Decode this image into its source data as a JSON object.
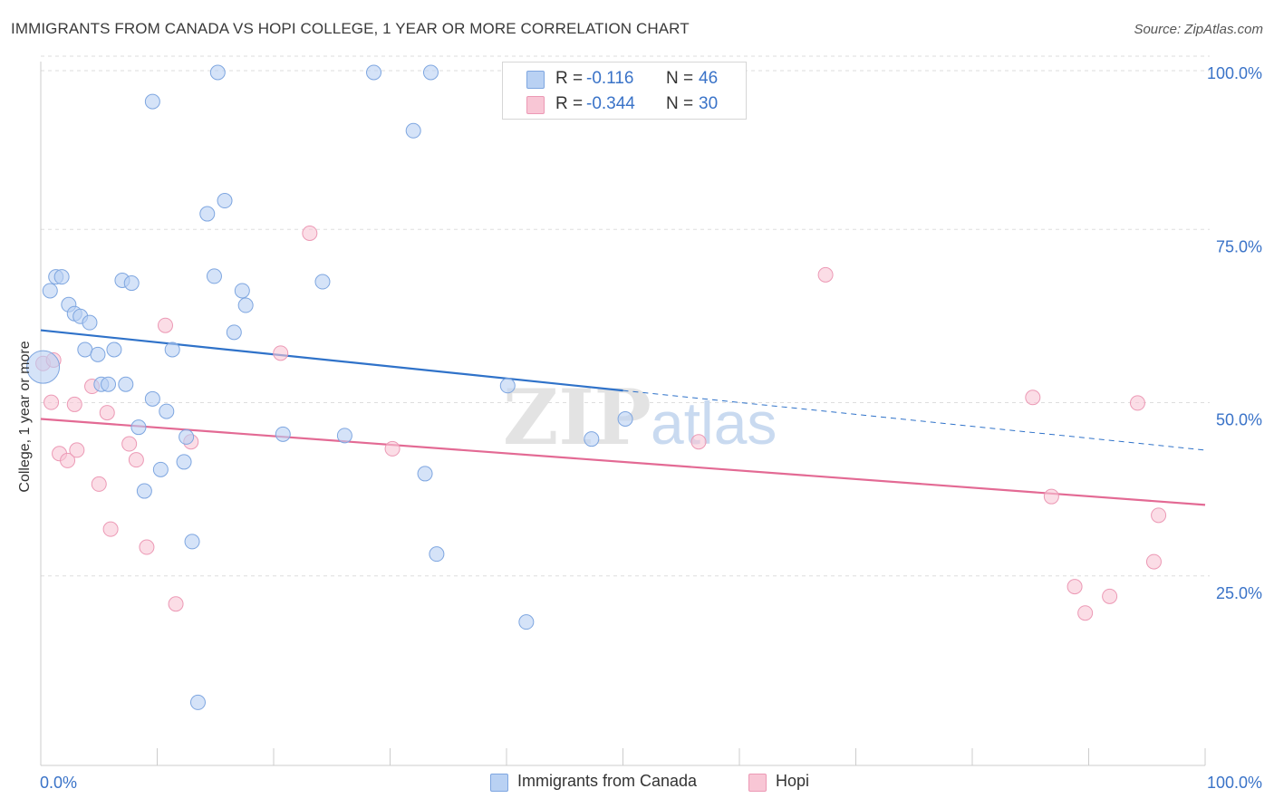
{
  "title": "IMMIGRANTS FROM CANADA VS HOPI COLLEGE, 1 YEAR OR MORE CORRELATION CHART",
  "source": "Source: ZipAtlas.com",
  "watermark": {
    "zip": "ZIP",
    "atlas": "atlas"
  },
  "legend": {
    "rows": [
      {
        "r_label": "R =",
        "r_value": "-0.116",
        "n_label": "N =",
        "n_value": "46"
      },
      {
        "r_label": "R =",
        "r_value": "-0.344",
        "n_label": "N =",
        "n_value": "30"
      }
    ]
  },
  "bottom_legend": [
    "Immigrants from Canada",
    "Hopi"
  ],
  "colors": {
    "canada_fill": "#b9d1f3",
    "canada_stroke": "#7ea6e0",
    "canada_line": "#2f72c9",
    "hopi_fill": "#f8c6d5",
    "hopi_stroke": "#ec99b5",
    "hopi_line": "#e36a94",
    "axis_label": "#3a73c8",
    "grid": "#dddddd"
  },
  "chart_data": {
    "type": "scatter",
    "title": "IMMIGRANTS FROM CANADA VS HOPI COLLEGE, 1 YEAR OR MORE CORRELATION CHART",
    "xlabel": "",
    "ylabel": "College, 1 year or more",
    "xlim": [
      0,
      100
    ],
    "ylim": [
      0,
      103
    ],
    "x_tick_labels": [
      "0.0%",
      "100.0%"
    ],
    "y_tick_values": [
      25,
      50,
      75,
      100
    ],
    "y_tick_labels": [
      "25.0%",
      "50.0%",
      "75.0%",
      "100.0%"
    ],
    "grid": true,
    "legend_position": "top-center",
    "series": [
      {
        "name": "Immigrants from Canada",
        "r": -0.116,
        "n": 46,
        "trend": {
          "x0": 0,
          "y0": 62.8,
          "x1": 50,
          "y1": 54.1,
          "dashed_to_x": 100,
          "dashed_to_y": 45.5
        },
        "points": [
          {
            "x": 0.2,
            "y": 57.5,
            "big": true
          },
          {
            "x": 0.8,
            "y": 68.5
          },
          {
            "x": 1.3,
            "y": 70.5
          },
          {
            "x": 1.8,
            "y": 70.5
          },
          {
            "x": 2.4,
            "y": 66.5
          },
          {
            "x": 2.9,
            "y": 65.2
          },
          {
            "x": 3.4,
            "y": 64.8
          },
          {
            "x": 4.2,
            "y": 63.9
          },
          {
            "x": 3.8,
            "y": 60.0
          },
          {
            "x": 4.9,
            "y": 59.3
          },
          {
            "x": 6.3,
            "y": 60.0
          },
          {
            "x": 5.2,
            "y": 55.0
          },
          {
            "x": 5.8,
            "y": 55.0
          },
          {
            "x": 7.3,
            "y": 55.0
          },
          {
            "x": 7.0,
            "y": 70.0
          },
          {
            "x": 7.8,
            "y": 69.6
          },
          {
            "x": 8.4,
            "y": 48.8
          },
          {
            "x": 8.9,
            "y": 39.6
          },
          {
            "x": 9.6,
            "y": 52.9
          },
          {
            "x": 10.3,
            "y": 42.7
          },
          {
            "x": 10.8,
            "y": 51.1
          },
          {
            "x": 11.3,
            "y": 60.0
          },
          {
            "x": 12.3,
            "y": 43.8
          },
          {
            "x": 12.5,
            "y": 47.4
          },
          {
            "x": 13.0,
            "y": 32.3
          },
          {
            "x": 13.5,
            "y": 9.1
          },
          {
            "x": 14.3,
            "y": 79.6
          },
          {
            "x": 14.9,
            "y": 70.6
          },
          {
            "x": 15.8,
            "y": 81.5
          },
          {
            "x": 16.6,
            "y": 62.5
          },
          {
            "x": 17.3,
            "y": 68.5
          },
          {
            "x": 17.6,
            "y": 66.4
          },
          {
            "x": 9.6,
            "y": 95.8
          },
          {
            "x": 15.2,
            "y": 100.0
          },
          {
            "x": 20.8,
            "y": 47.8
          },
          {
            "x": 24.2,
            "y": 69.8
          },
          {
            "x": 26.1,
            "y": 47.6
          },
          {
            "x": 28.6,
            "y": 100.0
          },
          {
            "x": 32.0,
            "y": 91.6
          },
          {
            "x": 33.5,
            "y": 100.0
          },
          {
            "x": 33.0,
            "y": 42.1
          },
          {
            "x": 34.0,
            "y": 30.5
          },
          {
            "x": 40.1,
            "y": 54.8
          },
          {
            "x": 41.7,
            "y": 20.7
          },
          {
            "x": 47.3,
            "y": 47.1
          },
          {
            "x": 50.2,
            "y": 50.0
          }
        ]
      },
      {
        "name": "Hopi",
        "r": -0.344,
        "n": 30,
        "trend": {
          "x0": 0,
          "y0": 50.0,
          "x1": 100,
          "y1": 37.6
        },
        "points": [
          {
            "x": 0.2,
            "y": 58.0
          },
          {
            "x": 1.1,
            "y": 58.5
          },
          {
            "x": 0.9,
            "y": 52.4
          },
          {
            "x": 1.6,
            "y": 45.0
          },
          {
            "x": 2.3,
            "y": 44.0
          },
          {
            "x": 3.1,
            "y": 45.5
          },
          {
            "x": 2.9,
            "y": 52.1
          },
          {
            "x": 4.4,
            "y": 54.7
          },
          {
            "x": 5.0,
            "y": 40.6
          },
          {
            "x": 5.7,
            "y": 50.9
          },
          {
            "x": 6.0,
            "y": 34.1
          },
          {
            "x": 7.6,
            "y": 46.4
          },
          {
            "x": 8.2,
            "y": 44.1
          },
          {
            "x": 9.1,
            "y": 31.5
          },
          {
            "x": 10.7,
            "y": 63.5
          },
          {
            "x": 11.6,
            "y": 23.3
          },
          {
            "x": 12.9,
            "y": 46.7
          },
          {
            "x": 20.6,
            "y": 59.5
          },
          {
            "x": 23.1,
            "y": 76.8
          },
          {
            "x": 30.2,
            "y": 45.7
          },
          {
            "x": 56.5,
            "y": 46.7
          },
          {
            "x": 67.4,
            "y": 70.8
          },
          {
            "x": 85.2,
            "y": 53.1
          },
          {
            "x": 86.8,
            "y": 38.8
          },
          {
            "x": 88.8,
            "y": 25.8
          },
          {
            "x": 89.7,
            "y": 22.0
          },
          {
            "x": 91.8,
            "y": 24.4
          },
          {
            "x": 94.2,
            "y": 52.3
          },
          {
            "x": 95.6,
            "y": 29.4
          },
          {
            "x": 96.0,
            "y": 36.1
          }
        ]
      }
    ]
  }
}
